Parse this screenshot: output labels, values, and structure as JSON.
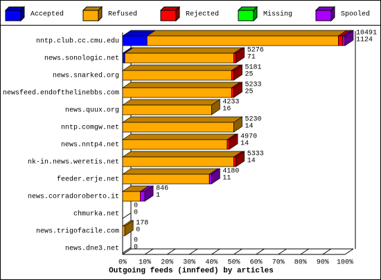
{
  "chart_data": {
    "type": "bar3d-stacked-horizontal",
    "xlabel": "Outgoing feeds (innfeed) by articles",
    "categories": [
      "nntp.club.cc.cmu.edu",
      "news.sonologic.net",
      "news.snarked.org",
      "newsfeed.endofthelinebbs.com",
      "news.quux.org",
      "nntp.comgw.net",
      "news.nntp4.net",
      "nk-in.news.weretis.net",
      "feeder.erje.net",
      "news.corradoroberto.it",
      "chmurka.net",
      "news.trigofacile.com",
      "news.dne3.net"
    ],
    "series": [
      {
        "name": "Accepted",
        "color": "#0000ff",
        "values": [
          11,
          1,
          0,
          0,
          0,
          0,
          0,
          0,
          0,
          0,
          0,
          0,
          0
        ]
      },
      {
        "name": "Refused",
        "color": "#ffaa00",
        "values": [
          86,
          49,
          49,
          49,
          40,
          50,
          47,
          50,
          39,
          8,
          0,
          1,
          0
        ]
      },
      {
        "name": "Rejected",
        "color": "#ff0000",
        "values": [
          2,
          1,
          1,
          1,
          0,
          0,
          1,
          1,
          0,
          0,
          0,
          0,
          0
        ]
      },
      {
        "name": "Missing",
        "color": "#00ff00",
        "values": [
          0,
          0,
          0,
          0,
          0,
          0,
          0,
          0,
          0,
          0,
          0,
          0,
          0
        ]
      },
      {
        "name": "Spooled",
        "color": "#aa00ff",
        "values": [
          1,
          0,
          0,
          0,
          0,
          0,
          0,
          0,
          1,
          2,
          0,
          0,
          0
        ]
      }
    ],
    "bar_labels": [
      [
        "10491",
        "1124"
      ],
      [
        "5276",
        "71"
      ],
      [
        "5181",
        "25"
      ],
      [
        "5233",
        "25"
      ],
      [
        "4233",
        "16"
      ],
      [
        "5230",
        "14"
      ],
      [
        "4970",
        "14"
      ],
      [
        "5333",
        "14"
      ],
      [
        "4180",
        "11"
      ],
      [
        "846",
        "1"
      ],
      [
        "0",
        "0"
      ],
      [
        "178",
        "0"
      ],
      [
        "0",
        "0"
      ]
    ],
    "xlim": [
      0,
      100
    ],
    "xticks": [
      {
        "value": 0,
        "label": "0%"
      },
      {
        "value": 10,
        "label": "10%"
      },
      {
        "value": 20,
        "label": "20%"
      },
      {
        "value": 30,
        "label": "30%"
      },
      {
        "value": 40,
        "label": "40%"
      },
      {
        "value": 50,
        "label": "50%"
      },
      {
        "value": 60,
        "label": "60%"
      },
      {
        "value": 70,
        "label": "70%"
      },
      {
        "value": 80,
        "label": "80%"
      },
      {
        "value": 90,
        "label": "90%"
      },
      {
        "value": 100,
        "label": "100%"
      }
    ]
  }
}
